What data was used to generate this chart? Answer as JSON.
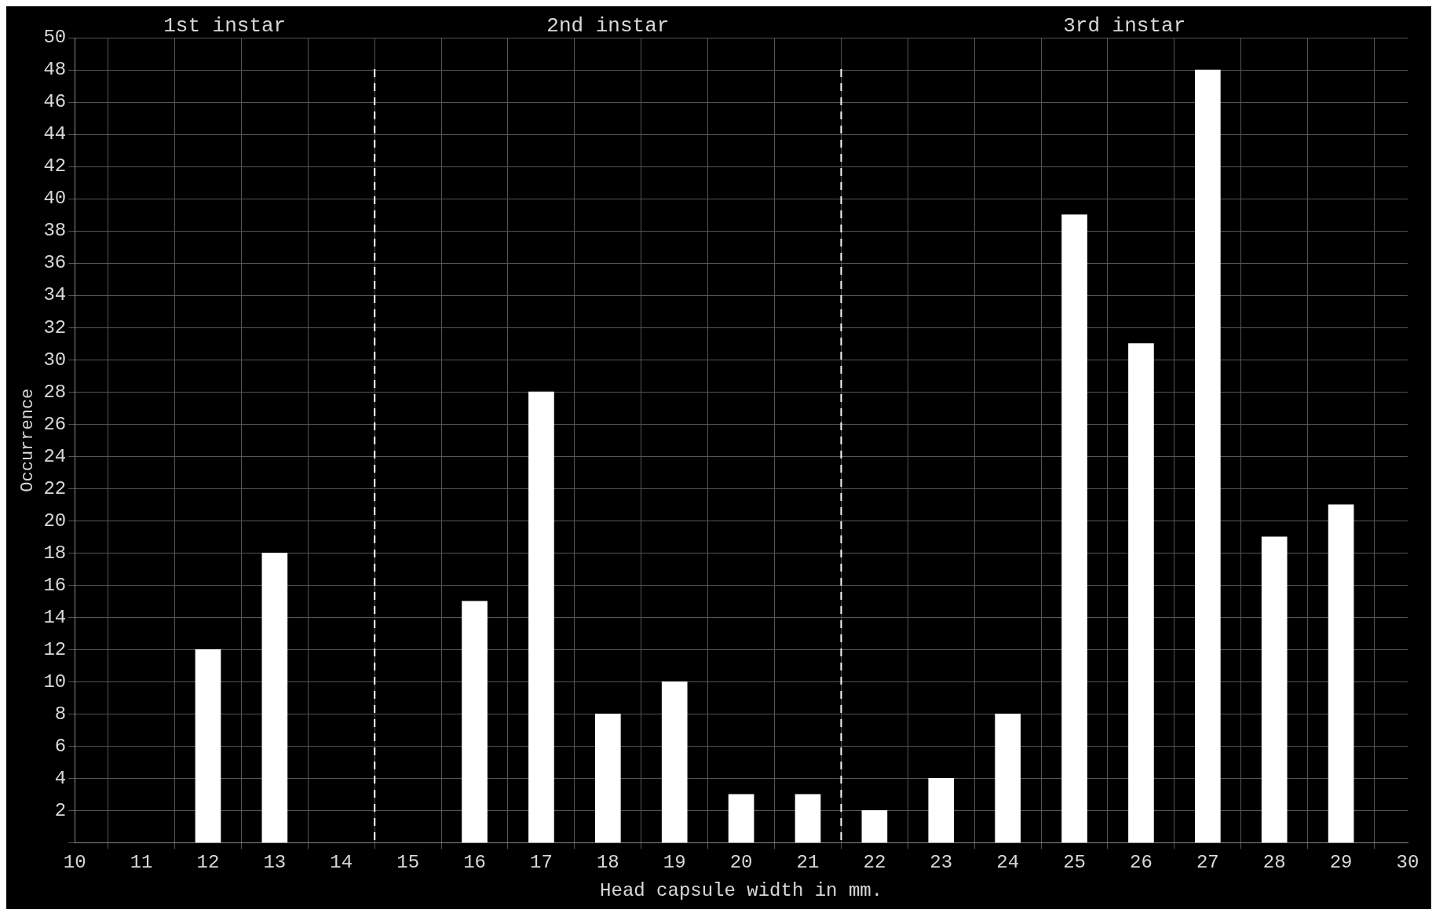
{
  "chart_data": {
    "type": "bar",
    "xlabel": "Head capsule width in mm.",
    "ylabel": "Occurrence",
    "x": [
      12,
      13,
      16,
      17,
      18,
      19,
      20,
      21,
      22,
      23,
      24,
      25,
      26,
      27,
      28,
      29
    ],
    "values": [
      12,
      18,
      15,
      28,
      8,
      10,
      3,
      3,
      2,
      4,
      8,
      39,
      31,
      48,
      19,
      21
    ],
    "color": "#ffffff",
    "xlim": [
      10,
      30
    ],
    "xticks": [
      10,
      11,
      12,
      13,
      14,
      15,
      16,
      17,
      18,
      19,
      20,
      21,
      22,
      23,
      24,
      25,
      26,
      27,
      28,
      29,
      30
    ],
    "ylim": [
      0,
      50
    ],
    "yticks": [
      {
        "value": 0,
        "label": null
      },
      2,
      4,
      6,
      8,
      10,
      12,
      14,
      16,
      18,
      20,
      22,
      24,
      26,
      28,
      30,
      32,
      34,
      36,
      38,
      40,
      42,
      44,
      46,
      48,
      50
    ],
    "ref_lines": [
      {
        "axis": "x",
        "value": 14.5,
        "label": null,
        "color": "#ffffff",
        "line_style": "dashed"
      },
      {
        "axis": "x",
        "value": 21.5,
        "label": null,
        "color": "#ffffff",
        "line_style": "dashed"
      }
    ],
    "annotations": [
      "1st instar",
      "2nd instar",
      "3rd instar"
    ],
    "grid": true
  }
}
